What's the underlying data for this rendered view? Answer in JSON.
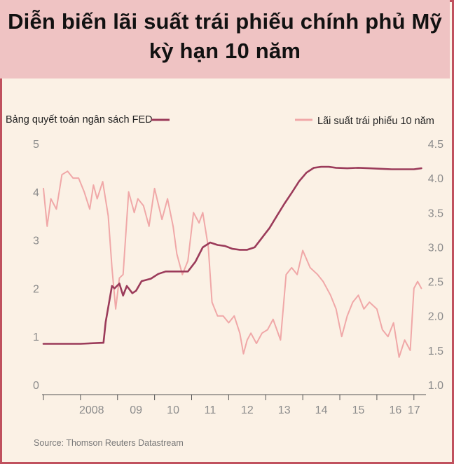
{
  "title_line1": "Diễn biến lãi suất trái phiếu chính phủ Mỹ",
  "title_line2": "kỳ hạn 10 năm",
  "source": "Source: Thomson Reuters Datastream",
  "colors": {
    "fed": "#9b3b5a",
    "yield": "#f0a8a8",
    "frame": "#c0515e",
    "header": "#efc3c3",
    "background": "#fbf1e5"
  },
  "chart_data": {
    "type": "line",
    "title": "Diễn biến lãi suất trái phiếu chính phủ Mỹ kỳ hạn 10 năm",
    "x_ticks": [
      "2008",
      "09",
      "10",
      "11",
      "12",
      "13",
      "14",
      "15",
      "16",
      "17"
    ],
    "xlim": [
      2007.0,
      2017.25
    ],
    "y_left": {
      "ticks": [
        "0",
        "1",
        "2",
        "3",
        "4",
        "5"
      ],
      "lim": [
        0,
        5
      ]
    },
    "y_right": {
      "ticks": [
        "1.0",
        "1.5",
        "2.0",
        "2.5",
        "3.0",
        "3.5",
        "4.0",
        "4.5"
      ],
      "lim": [
        1.0,
        4.5
      ]
    },
    "grid": false,
    "series": [
      {
        "name": "Bảng quyết toán ngân sách FED",
        "axis": "left",
        "x": [
          2007.0,
          2007.5,
          2008.0,
          2008.62,
          2008.68,
          2008.85,
          2008.92,
          2009.05,
          2009.15,
          2009.25,
          2009.4,
          2009.5,
          2009.65,
          2009.9,
          2010.1,
          2010.3,
          2010.5,
          2010.75,
          2010.9,
          2011.1,
          2011.3,
          2011.5,
          2011.7,
          2011.9,
          2012.1,
          2012.3,
          2012.5,
          2012.7,
          2012.9,
          2013.1,
          2013.3,
          2013.5,
          2013.7,
          2013.9,
          2014.1,
          2014.3,
          2014.5,
          2014.7,
          2014.9,
          2015.2,
          2015.5,
          2015.8,
          2016.1,
          2016.4,
          2016.7,
          2017.0,
          2017.2
        ],
        "y": [
          0.85,
          0.85,
          0.85,
          0.87,
          1.3,
          2.05,
          2.0,
          2.1,
          1.85,
          2.05,
          1.9,
          1.95,
          2.15,
          2.2,
          2.3,
          2.35,
          2.35,
          2.35,
          2.35,
          2.55,
          2.85,
          2.95,
          2.9,
          2.88,
          2.82,
          2.8,
          2.8,
          2.85,
          3.05,
          3.25,
          3.5,
          3.75,
          3.98,
          4.22,
          4.4,
          4.5,
          4.52,
          4.52,
          4.5,
          4.49,
          4.5,
          4.49,
          4.48,
          4.47,
          4.47,
          4.47,
          4.49
        ]
      },
      {
        "name": "Lãi suất trái phiếu 10 năm",
        "axis": "right",
        "x": [
          2007.0,
          2007.1,
          2007.2,
          2007.35,
          2007.5,
          2007.65,
          2007.8,
          2007.95,
          2008.1,
          2008.25,
          2008.35,
          2008.45,
          2008.6,
          2008.75,
          2008.85,
          2008.95,
          2009.05,
          2009.15,
          2009.3,
          2009.45,
          2009.55,
          2009.7,
          2009.85,
          2010.0,
          2010.2,
          2010.35,
          2010.5,
          2010.6,
          2010.75,
          2010.9,
          2011.05,
          2011.2,
          2011.3,
          2011.45,
          2011.55,
          2011.7,
          2011.85,
          2012.0,
          2012.15,
          2012.3,
          2012.4,
          2012.5,
          2012.6,
          2012.75,
          2012.9,
          2013.05,
          2013.2,
          2013.4,
          2013.55,
          2013.7,
          2013.85,
          2014.0,
          2014.2,
          2014.4,
          2014.55,
          2014.75,
          2014.9,
          2015.05,
          2015.2,
          2015.35,
          2015.5,
          2015.65,
          2015.8,
          2016.0,
          2016.15,
          2016.3,
          2016.45,
          2016.6,
          2016.75,
          2016.9,
          2017.0,
          2017.1,
          2017.2
        ],
        "y": [
          3.85,
          3.3,
          3.7,
          3.55,
          4.05,
          4.1,
          4.0,
          4.0,
          3.8,
          3.55,
          3.9,
          3.7,
          3.95,
          3.45,
          2.7,
          2.1,
          2.55,
          2.6,
          3.8,
          3.5,
          3.7,
          3.6,
          3.3,
          3.85,
          3.4,
          3.7,
          3.3,
          2.9,
          2.6,
          2.8,
          3.5,
          3.35,
          3.5,
          3.0,
          2.2,
          2.0,
          2.0,
          1.9,
          2.0,
          1.75,
          1.45,
          1.65,
          1.75,
          1.6,
          1.75,
          1.8,
          1.95,
          1.65,
          2.6,
          2.7,
          2.6,
          2.95,
          2.7,
          2.6,
          2.5,
          2.3,
          2.1,
          1.7,
          2.0,
          2.2,
          2.3,
          2.1,
          2.2,
          2.1,
          1.8,
          1.7,
          1.9,
          1.4,
          1.65,
          1.5,
          2.4,
          2.5,
          2.4
        ]
      }
    ]
  }
}
